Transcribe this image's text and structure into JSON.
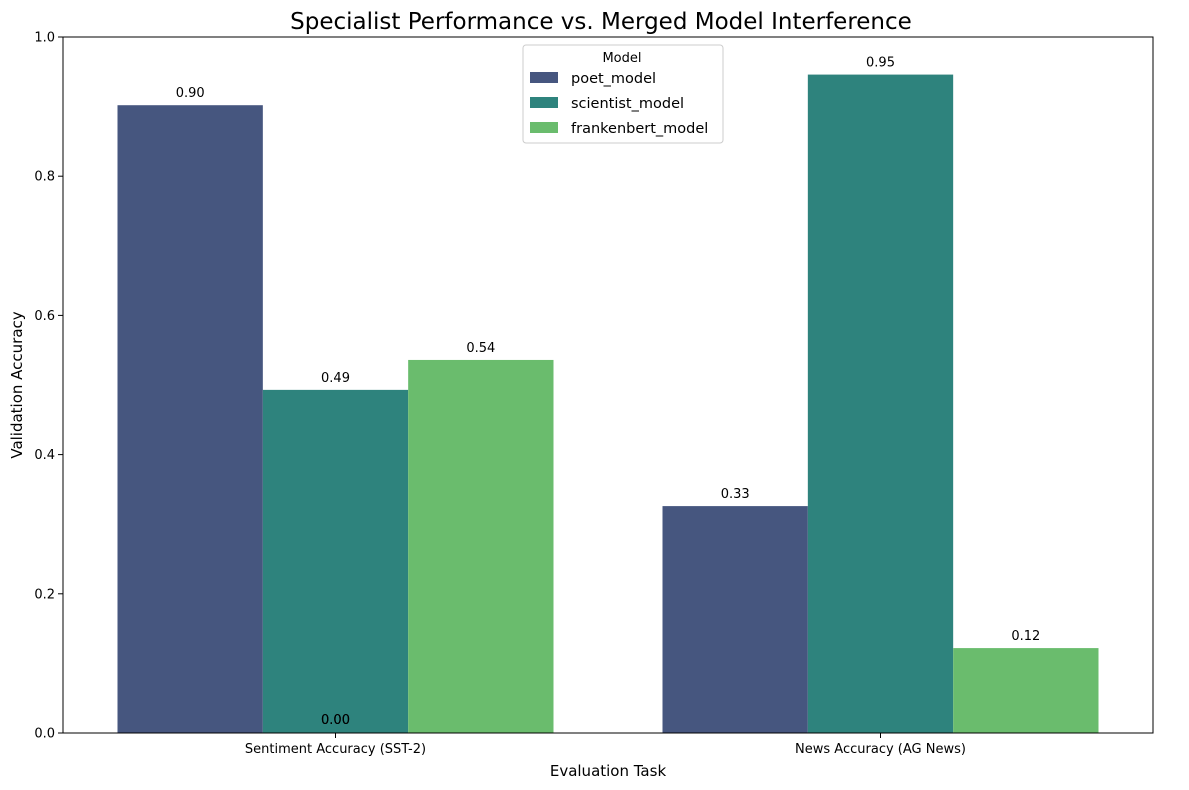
{
  "chart_data": {
    "type": "bar",
    "title": "Specialist Performance vs. Merged Model Interference",
    "xlabel": "Evaluation Task",
    "ylabel": "Validation Accuracy",
    "categories": [
      "Sentiment Accuracy (SST-2)",
      "News Accuracy (AG News)"
    ],
    "ylim": [
      0,
      1.0
    ],
    "yticks": [
      "0.0",
      "0.2",
      "0.4",
      "0.6",
      "0.8",
      "1.0"
    ],
    "series": [
      {
        "name": "poet_model",
        "color": "#46567f",
        "values": [
          0.902,
          0.326
        ],
        "labels": [
          "0.90",
          "0.33"
        ]
      },
      {
        "name": "scientist_model",
        "color": "#2e837d",
        "values": [
          0.493,
          0.946
        ],
        "labels": [
          "0.49",
          "0.95"
        ]
      },
      {
        "name": "frankenbert_model",
        "color": "#6abc6d",
        "values": [
          0.536,
          0.122
        ],
        "labels": [
          "0.54",
          "0.12"
        ]
      }
    ],
    "extra_labels": [
      "0.00",
      "0.00"
    ],
    "legend": {
      "title": "Model",
      "position": "top-center"
    },
    "grid": false
  }
}
